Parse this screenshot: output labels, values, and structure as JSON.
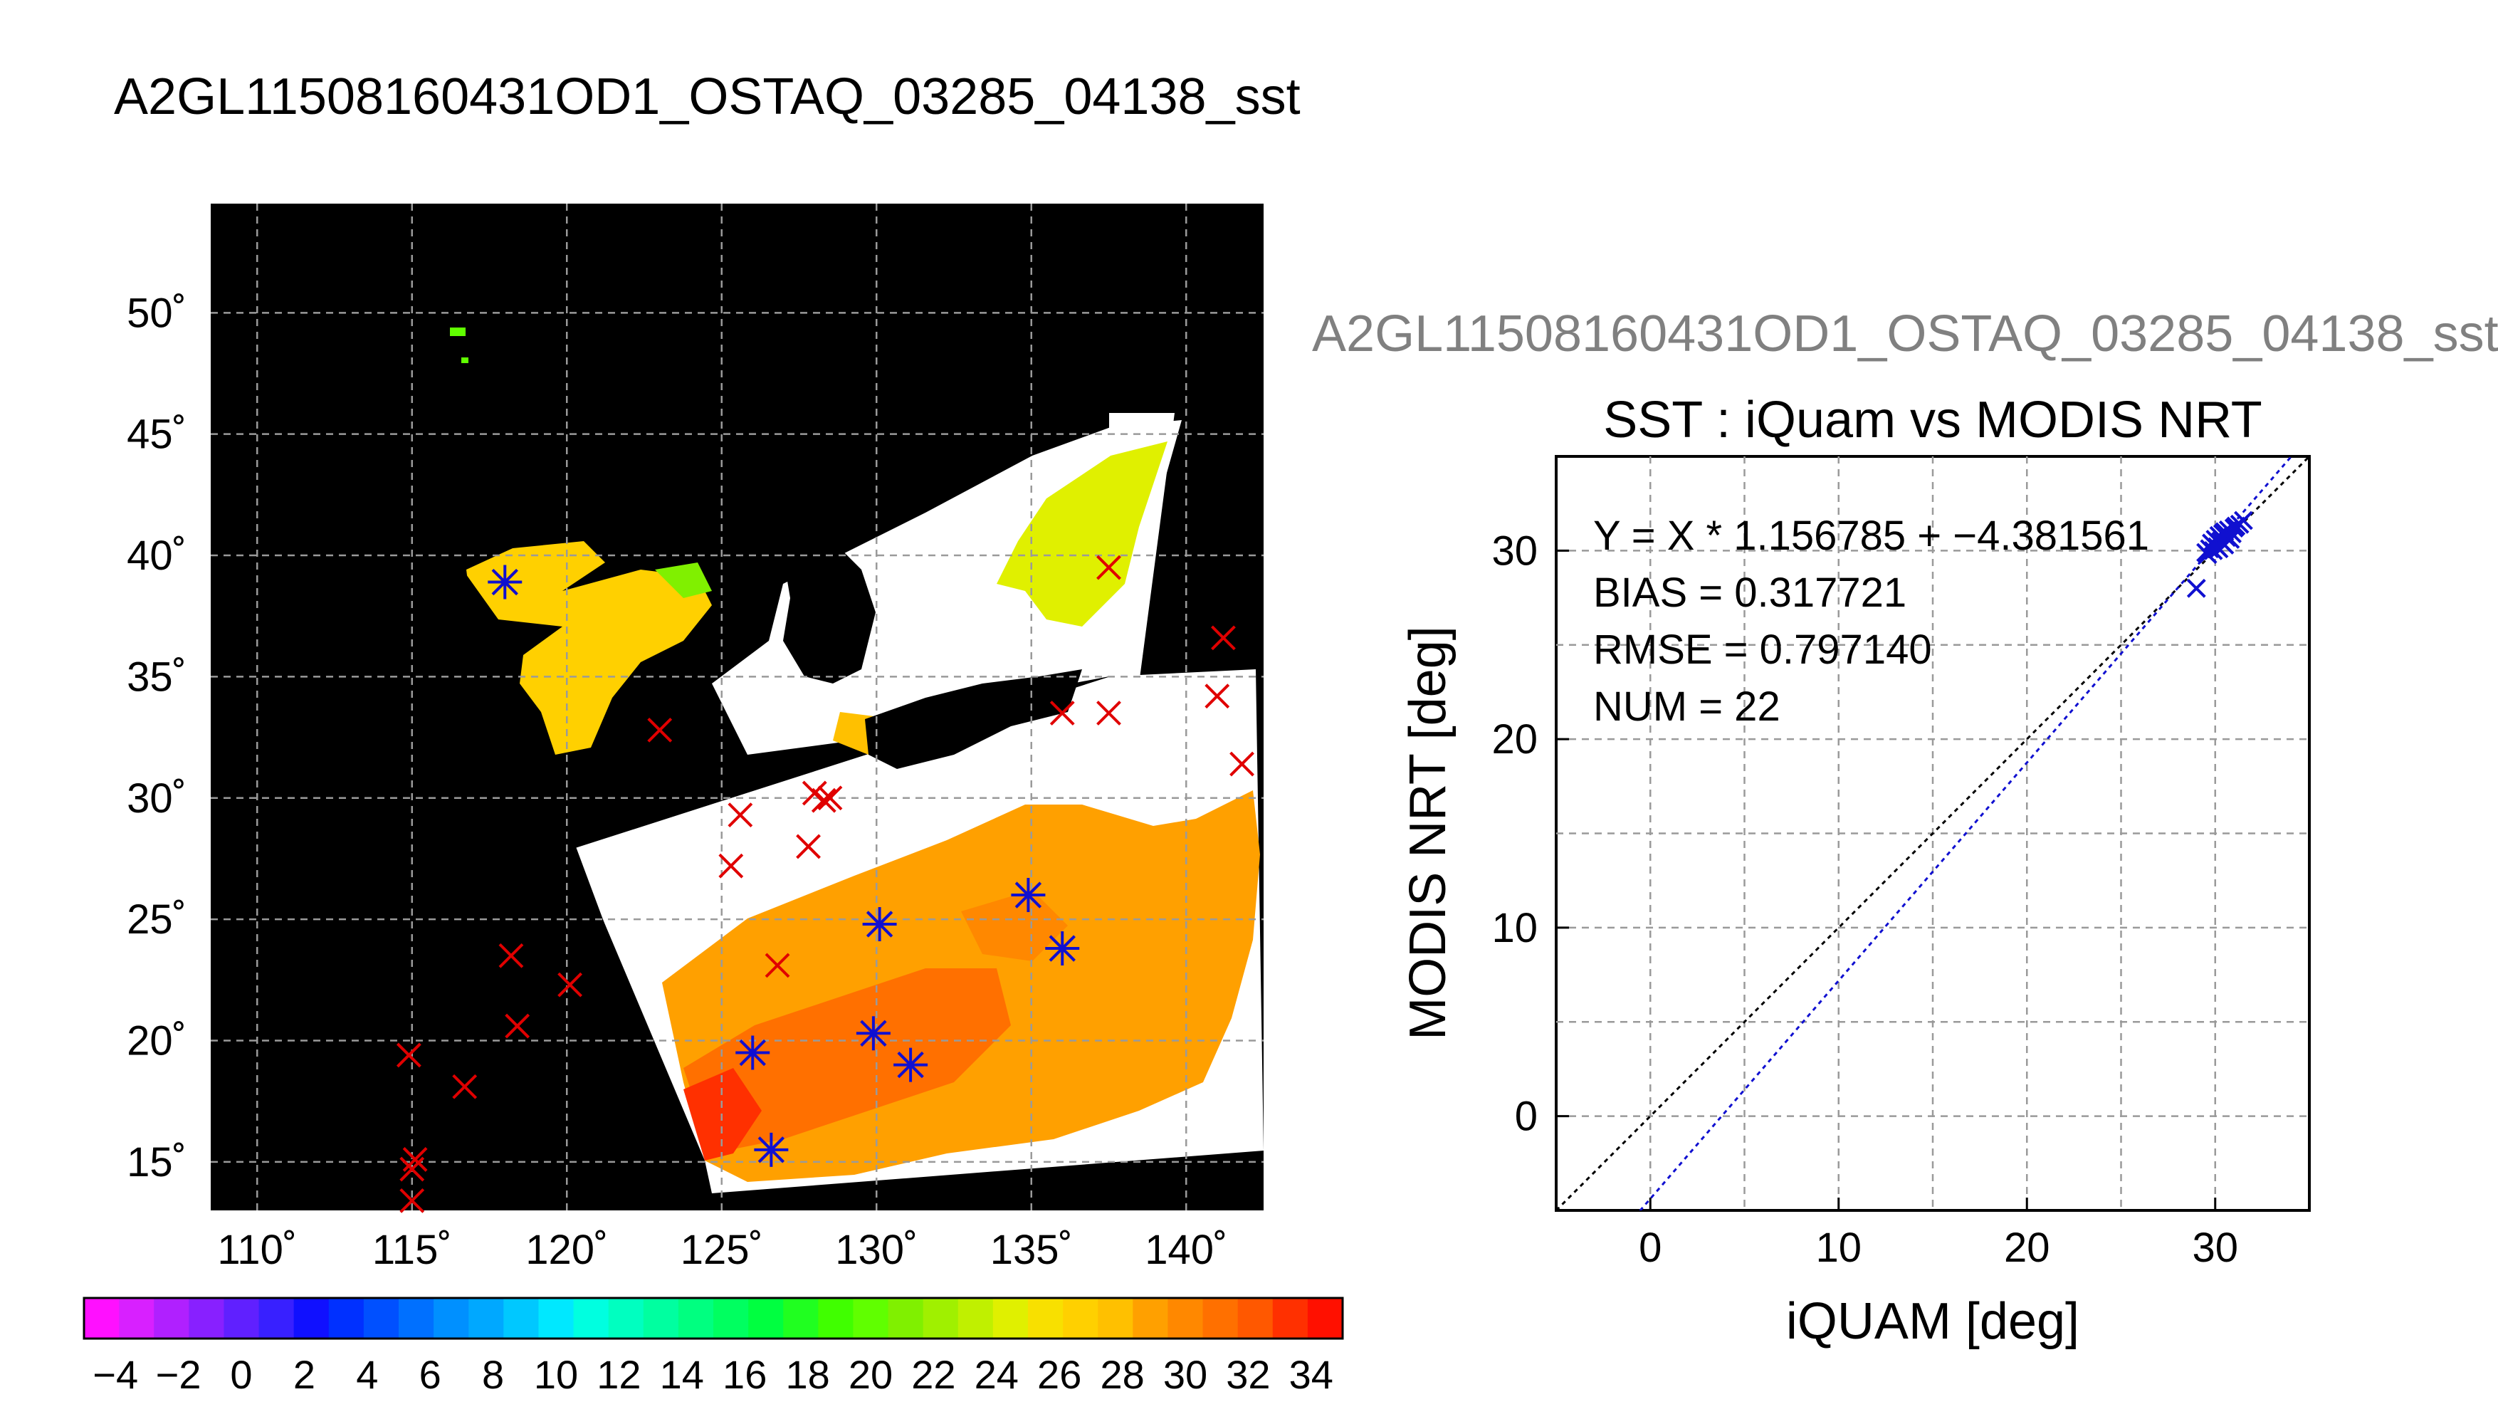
{
  "page_title": "A2GL11508160431OD1_OSTAQ_03285_04138_sst",
  "colors": {
    "land": "#000000",
    "cloud": "#ffffff",
    "match_marker": "#e00000",
    "valid_marker": "#1010d0",
    "fit_line": "#1010d0",
    "one_to_one_line": "#000000",
    "grid": "#9a9a9a"
  },
  "chart_data": [
    {
      "type": "map",
      "xlim": [
        108.5,
        142.5
      ],
      "ylim": [
        13,
        54.5
      ],
      "lon_ticks": [
        "110˚",
        "115˚",
        "120˚",
        "125˚",
        "130˚",
        "135˚",
        "140˚"
      ],
      "lon_tick_values": [
        110,
        115,
        120,
        125,
        130,
        135,
        140
      ],
      "lat_ticks": [
        "15˚",
        "20˚",
        "25˚",
        "30˚",
        "35˚",
        "40˚",
        "45˚",
        "50˚"
      ],
      "lat_tick_values": [
        15,
        20,
        25,
        30,
        35,
        40,
        45,
        50
      ],
      "grid": true,
      "colorbar": {
        "vmin": -5,
        "vmax": 35,
        "tick_labels": [
          "−4",
          "−2",
          "0",
          "2",
          "4",
          "6",
          "8",
          "10",
          "12",
          "14",
          "16",
          "18",
          "20",
          "22",
          "24",
          "26",
          "28",
          "30",
          "32",
          "34"
        ],
        "tick_values": [
          -4,
          -2,
          0,
          2,
          4,
          6,
          8,
          10,
          12,
          14,
          16,
          18,
          20,
          22,
          24,
          26,
          28,
          30,
          32,
          34
        ],
        "segment_colors": [
          "#ff10ff",
          "#d820ff",
          "#b020ff",
          "#8820ff",
          "#6020ff",
          "#3820ff",
          "#1010ff",
          "#0030ff",
          "#0050ff",
          "#0070ff",
          "#0090ff",
          "#00a8ff",
          "#00c8ff",
          "#00e8ff",
          "#00ffe0",
          "#00ffc0",
          "#00ffa0",
          "#00ff80",
          "#00ff60",
          "#00ff40",
          "#20ff20",
          "#40ff00",
          "#60ff00",
          "#80f000",
          "#a0f000",
          "#c0f000",
          "#e0f000",
          "#f8e000",
          "#ffd000",
          "#ffc000",
          "#ffa000",
          "#ff8800",
          "#ff7000",
          "#ff5800",
          "#ff3000",
          "#ff1000"
        ]
      },
      "iquam_points": [
        {
          "lon": 118.0,
          "lat": 38.9
        },
        {
          "lon": 123.0,
          "lat": 32.8
        },
        {
          "lon": 125.6,
          "lat": 29.3
        },
        {
          "lon": 125.3,
          "lat": 27.2
        },
        {
          "lon": 127.8,
          "lat": 28.0
        },
        {
          "lon": 128.0,
          "lat": 30.2
        },
        {
          "lon": 128.3,
          "lat": 29.9
        },
        {
          "lon": 128.5,
          "lat": 30.0
        },
        {
          "lon": 136.0,
          "lat": 33.5
        },
        {
          "lon": 137.5,
          "lat": 33.5
        },
        {
          "lon": 137.5,
          "lat": 39.5
        },
        {
          "lon": 141.2,
          "lat": 36.6
        },
        {
          "lon": 141.0,
          "lat": 34.2
        },
        {
          "lon": 141.8,
          "lat": 31.4
        },
        {
          "lon": 118.2,
          "lat": 23.5
        },
        {
          "lon": 118.4,
          "lat": 20.6
        },
        {
          "lon": 120.1,
          "lat": 22.3
        },
        {
          "lon": 114.9,
          "lat": 19.4
        },
        {
          "lon": 116.7,
          "lat": 18.1
        },
        {
          "lon": 115.1,
          "lat": 15.1
        },
        {
          "lon": 115.0,
          "lat": 14.7
        },
        {
          "lon": 115.0,
          "lat": 13.4
        },
        {
          "lon": 126.8,
          "lat": 23.1
        },
        {
          "lon": 126.0,
          "lat": 19.5
        },
        {
          "lon": 126.6,
          "lat": 15.5
        },
        {
          "lon": 129.9,
          "lat": 20.3
        },
        {
          "lon": 131.1,
          "lat": 19.0
        },
        {
          "lon": 130.1,
          "lat": 24.8
        },
        {
          "lon": 134.9,
          "lat": 26.0
        },
        {
          "lon": 136.0,
          "lat": 23.8
        }
      ],
      "valid_points": [
        {
          "lon": 126.0,
          "lat": 19.5
        },
        {
          "lon": 126.6,
          "lat": 15.5
        },
        {
          "lon": 129.9,
          "lat": 20.3
        },
        {
          "lon": 131.1,
          "lat": 19.0
        },
        {
          "lon": 130.1,
          "lat": 24.8
        },
        {
          "lon": 134.9,
          "lat": 26.0
        },
        {
          "lon": 136.0,
          "lat": 23.8
        },
        {
          "lon": 118.0,
          "lat": 38.9
        }
      ]
    },
    {
      "type": "scatter",
      "title": "A2GL11508160431OD1_OSTAQ_03285_04138_sst",
      "subtitle": "SST : iQuam vs MODIS NRT",
      "xlabel": "iQUAM [deg]",
      "ylabel": "MODIS NRT [deg]",
      "xlim": [
        -5,
        35
      ],
      "ylim": [
        -5,
        35
      ],
      "x_ticks": [
        "0",
        "10",
        "20",
        "30"
      ],
      "x_tick_values": [
        0,
        10,
        20,
        30
      ],
      "y_ticks": [
        "0",
        "10",
        "20",
        "30"
      ],
      "y_tick_values": [
        0,
        10,
        20,
        30
      ],
      "grid": true,
      "stats": [
        "Y = X * 1.156785 + −4.381561",
        "BIAS = 0.317721",
        "RMSE = 0.797140",
        "NUM = 22"
      ],
      "fit": {
        "slope": 1.156785,
        "intercept": -4.381561
      },
      "points": [
        {
          "x": 29.0,
          "y": 28.0
        },
        {
          "x": 29.5,
          "y": 29.9
        },
        {
          "x": 29.7,
          "y": 30.1
        },
        {
          "x": 29.8,
          "y": 30.4
        },
        {
          "x": 29.9,
          "y": 30.0
        },
        {
          "x": 30.0,
          "y": 30.6
        },
        {
          "x": 30.1,
          "y": 30.2
        },
        {
          "x": 30.2,
          "y": 30.8
        },
        {
          "x": 30.3,
          "y": 30.5
        },
        {
          "x": 30.4,
          "y": 30.9
        },
        {
          "x": 30.5,
          "y": 31.0
        },
        {
          "x": 30.5,
          "y": 30.3
        },
        {
          "x": 30.6,
          "y": 30.7
        },
        {
          "x": 30.7,
          "y": 31.1
        },
        {
          "x": 30.8,
          "y": 30.6
        },
        {
          "x": 30.9,
          "y": 30.9
        },
        {
          "x": 31.0,
          "y": 31.2
        },
        {
          "x": 31.1,
          "y": 31.3
        },
        {
          "x": 31.3,
          "y": 31.4
        },
        {
          "x": 31.5,
          "y": 31.6
        },
        {
          "x": 30.2,
          "y": 30.1
        },
        {
          "x": 29.6,
          "y": 29.8
        }
      ]
    }
  ]
}
